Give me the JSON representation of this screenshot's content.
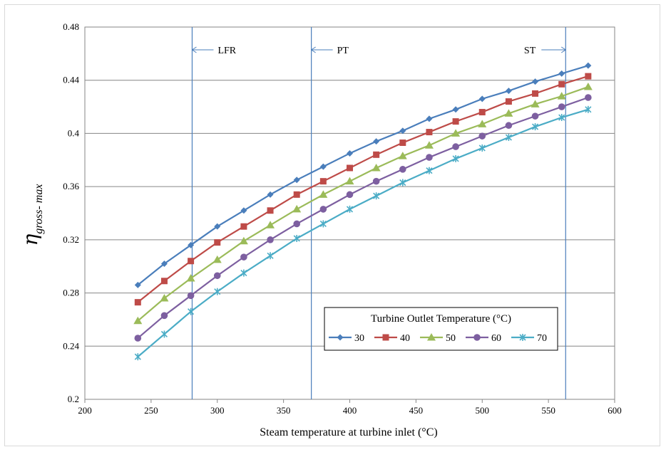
{
  "chart_data": {
    "type": "line",
    "xlabel": "Steam temperature at turbine inlet (°C)",
    "ylabel_symbol": "η",
    "ylabel_subscript": "gross- max",
    "xlim": [
      200,
      600
    ],
    "ylim": [
      0.2,
      0.48
    ],
    "x_ticks": [
      "200",
      "250",
      "300",
      "350",
      "400",
      "450",
      "500",
      "550",
      "600"
    ],
    "y_ticks": [
      "0.2",
      "0.24",
      "0.28",
      "0.32",
      "0.36",
      "0.4",
      "0.44",
      "0.48"
    ],
    "grid": true,
    "legend": {
      "title": "Turbine Outlet Temperature (°C)",
      "position": "lower-right"
    },
    "x": [
      240,
      260,
      280,
      300,
      320,
      340,
      360,
      380,
      400,
      420,
      440,
      460,
      480,
      500,
      520,
      540,
      560,
      580
    ],
    "series": [
      {
        "name": "30",
        "color": "#4a7ebb",
        "marker": "diamond",
        "values": [
          0.286,
          0.302,
          0.316,
          0.33,
          0.342,
          0.354,
          0.365,
          0.375,
          0.385,
          0.394,
          0.402,
          0.411,
          0.418,
          0.426,
          0.432,
          0.439,
          0.445,
          0.451
        ]
      },
      {
        "name": "40",
        "color": "#be4b48",
        "marker": "square",
        "values": [
          0.273,
          0.289,
          0.304,
          0.318,
          0.33,
          0.342,
          0.354,
          0.364,
          0.374,
          0.384,
          0.393,
          0.401,
          0.409,
          0.416,
          0.424,
          0.43,
          0.437,
          0.443
        ]
      },
      {
        "name": "50",
        "color": "#9bbb59",
        "marker": "triangle",
        "values": [
          0.259,
          0.276,
          0.291,
          0.305,
          0.319,
          0.331,
          0.343,
          0.354,
          0.364,
          0.374,
          0.383,
          0.391,
          0.4,
          0.407,
          0.415,
          0.422,
          0.428,
          0.435
        ]
      },
      {
        "name": "60",
        "color": "#7d5fa0",
        "marker": "circle",
        "values": [
          0.246,
          0.263,
          0.278,
          0.293,
          0.307,
          0.32,
          0.332,
          0.343,
          0.354,
          0.364,
          0.373,
          0.382,
          0.39,
          0.398,
          0.406,
          0.413,
          0.42,
          0.427
        ]
      },
      {
        "name": "70",
        "color": "#4bacc6",
        "marker": "star",
        "values": [
          0.232,
          0.249,
          0.266,
          0.281,
          0.295,
          0.308,
          0.321,
          0.332,
          0.343,
          0.353,
          0.363,
          0.372,
          0.381,
          0.389,
          0.397,
          0.405,
          0.412,
          0.418
        ]
      }
    ],
    "annotations": [
      {
        "label": "LFR",
        "x": 281,
        "arrow": "left"
      },
      {
        "label": "PT",
        "x": 371,
        "arrow": "left"
      },
      {
        "label": "ST",
        "x": 563,
        "arrow": "right"
      }
    ]
  }
}
